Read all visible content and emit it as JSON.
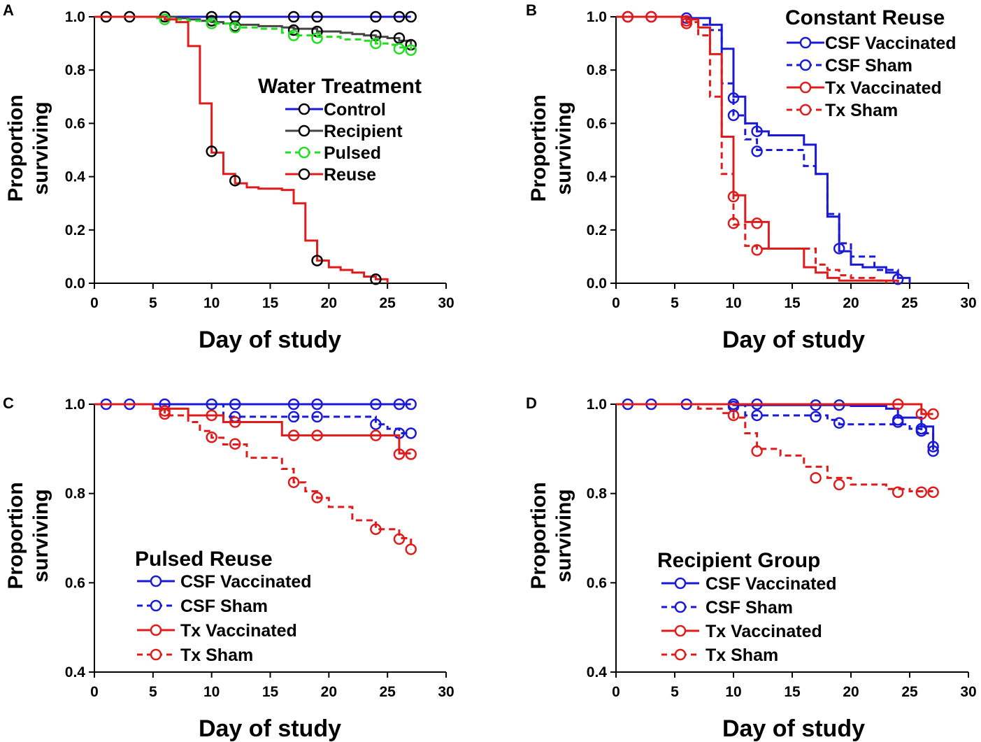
{
  "chart_data": [
    {
      "type": "line",
      "panel": "A",
      "xlabel": "Day of study",
      "ylabel": "Proportion surviving",
      "xlim": [
        0,
        30
      ],
      "ylim": [
        0,
        1.0
      ],
      "xticks": [
        "0",
        "5",
        "10",
        "15",
        "20",
        "25",
        "30"
      ],
      "yticks": [
        "0.0",
        "0.2",
        "0.4",
        "0.6",
        "0.8",
        "1.0"
      ],
      "legend_title": "Water Treatment",
      "legend_position": "center-right",
      "series": [
        {
          "name": "Control",
          "color": "#1a1ad6",
          "marker_color": "#000000",
          "dashed": false,
          "x": [
            0,
            27
          ],
          "y": [
            1.0,
            1.0
          ],
          "markers": [
            [
              1,
              1.0
            ],
            [
              3,
              1.0
            ],
            [
              6,
              1.0
            ],
            [
              10,
              1.0
            ],
            [
              12,
              1.0
            ],
            [
              17,
              1.0
            ],
            [
              19,
              1.0
            ],
            [
              24,
              1.0
            ],
            [
              26,
              1.0
            ],
            [
              27,
              1.0
            ]
          ]
        },
        {
          "name": "Recipient",
          "color": "#444444",
          "marker_color": "#000000",
          "dashed": false,
          "x": [
            0,
            7,
            8,
            9,
            10,
            11,
            12,
            14,
            16,
            17,
            19,
            21,
            22,
            23,
            24,
            25,
            26,
            27
          ],
          "y": [
            1.0,
            0.995,
            0.99,
            0.985,
            0.98,
            0.975,
            0.97,
            0.965,
            0.96,
            0.955,
            0.945,
            0.94,
            0.935,
            0.93,
            0.925,
            0.92,
            0.91,
            0.895
          ],
          "markers": [
            [
              10,
              0.985
            ],
            [
              12,
              0.965
            ],
            [
              17,
              0.95
            ],
            [
              19,
              0.945
            ],
            [
              24,
              0.93
            ],
            [
              26,
              0.92
            ],
            [
              27,
              0.895
            ]
          ]
        },
        {
          "name": "Pulsed",
          "color": "#22dd22",
          "marker_color": "#22dd22",
          "dashed": true,
          "x": [
            0,
            5,
            6,
            8,
            10,
            12,
            14,
            16,
            17,
            19,
            21,
            23,
            24,
            25,
            26,
            27
          ],
          "y": [
            1.0,
            0.995,
            0.99,
            0.985,
            0.975,
            0.96,
            0.955,
            0.94,
            0.93,
            0.925,
            0.915,
            0.91,
            0.9,
            0.895,
            0.885,
            0.875
          ],
          "markers": [
            [
              6,
              0.99
            ],
            [
              10,
              0.975
            ],
            [
              12,
              0.96
            ],
            [
              17,
              0.93
            ],
            [
              19,
              0.92
            ],
            [
              24,
              0.9
            ],
            [
              26,
              0.88
            ],
            [
              27,
              0.875
            ]
          ]
        },
        {
          "name": "Reuse",
          "color": "#e01b1b",
          "marker_color": "#000000",
          "dashed": false,
          "x": [
            0,
            6,
            7,
            8,
            9,
            10,
            11,
            12,
            13,
            14,
            16,
            17,
            18,
            19,
            20,
            21,
            22,
            23,
            24,
            25
          ],
          "y": [
            1.0,
            0.99,
            0.98,
            0.89,
            0.675,
            0.49,
            0.41,
            0.375,
            0.36,
            0.355,
            0.35,
            0.3,
            0.16,
            0.085,
            0.06,
            0.05,
            0.04,
            0.025,
            0.015,
            0.0
          ],
          "markers": [
            [
              10,
              0.495
            ],
            [
              12,
              0.385
            ],
            [
              19,
              0.085
            ],
            [
              24,
              0.015
            ]
          ]
        }
      ]
    },
    {
      "type": "line",
      "panel": "B",
      "xlabel": "Day of study",
      "ylabel": "Proportion surviving",
      "xlim": [
        0,
        30
      ],
      "ylim": [
        0,
        1.0
      ],
      "xticks": [
        "0",
        "5",
        "10",
        "15",
        "20",
        "25",
        "30"
      ],
      "yticks": [
        "0.0",
        "0.2",
        "0.4",
        "0.6",
        "0.8",
        "1.0"
      ],
      "legend_title": "Constant Reuse",
      "legend_position": "top-right",
      "series": [
        {
          "name": "CSF Vaccinated",
          "color": "#1a1ad6",
          "marker_color": "#1a1ad6",
          "dashed": false,
          "x": [
            0,
            6,
            8,
            9,
            10,
            11,
            12,
            13,
            16,
            17,
            18,
            19,
            20,
            21,
            23,
            24,
            25
          ],
          "y": [
            1.0,
            0.995,
            0.97,
            0.88,
            0.7,
            0.6,
            0.57,
            0.555,
            0.52,
            0.41,
            0.25,
            0.12,
            0.07,
            0.06,
            0.04,
            0.02,
            0.0
          ],
          "markers": [
            [
              1,
              1.0
            ],
            [
              3,
              1.0
            ],
            [
              6,
              0.995
            ],
            [
              10,
              0.695
            ],
            [
              12,
              0.57
            ],
            [
              19,
              0.13
            ],
            [
              24,
              0.015
            ]
          ]
        },
        {
          "name": "CSF Sham",
          "color": "#1a1ad6",
          "marker_color": "#1a1ad6",
          "dashed": true,
          "x": [
            0,
            6,
            7,
            8,
            9,
            10,
            11,
            12,
            16,
            17,
            18,
            19,
            20,
            22,
            24
          ],
          "y": [
            1.0,
            0.99,
            0.97,
            0.95,
            0.75,
            0.63,
            0.54,
            0.5,
            0.44,
            0.41,
            0.26,
            0.15,
            0.1,
            0.05,
            0.01
          ],
          "markers": [
            [
              10,
              0.63
            ],
            [
              12,
              0.495
            ]
          ]
        },
        {
          "name": "Tx Vaccinated",
          "color": "#e01b1b",
          "marker_color": "#e01b1b",
          "dashed": false,
          "x": [
            0,
            6,
            7,
            8,
            9,
            10,
            11,
            12,
            13,
            16,
            17,
            18,
            19,
            24
          ],
          "y": [
            1.0,
            0.99,
            0.96,
            0.86,
            0.55,
            0.33,
            0.23,
            0.23,
            0.13,
            0.06,
            0.04,
            0.02,
            0.01,
            0.0
          ],
          "markers": [
            [
              1,
              1.0
            ],
            [
              3,
              1.0
            ],
            [
              6,
              0.985
            ],
            [
              10,
              0.325
            ],
            [
              12,
              0.225
            ]
          ]
        },
        {
          "name": "Tx Sham",
          "color": "#e01b1b",
          "marker_color": "#e01b1b",
          "dashed": true,
          "x": [
            0,
            6,
            7,
            8,
            9,
            10,
            11,
            12,
            13,
            17,
            18,
            19,
            20,
            22,
            23
          ],
          "y": [
            1.0,
            0.98,
            0.93,
            0.7,
            0.41,
            0.22,
            0.14,
            0.13,
            0.13,
            0.07,
            0.05,
            0.03,
            0.02,
            0.01,
            0.0
          ],
          "markers": [
            [
              6,
              0.975
            ],
            [
              10,
              0.225
            ],
            [
              12,
              0.125
            ]
          ]
        }
      ]
    },
    {
      "type": "line",
      "panel": "C",
      "xlabel": "Day of study",
      "ylabel": "Proportion surviving",
      "xlim": [
        0,
        30
      ],
      "ylim": [
        0.4,
        1.0
      ],
      "xticks": [
        "0",
        "5",
        "10",
        "15",
        "20",
        "25",
        "30"
      ],
      "yticks": [
        "0.4",
        "0.6",
        "0.8",
        "1.0"
      ],
      "legend_title": "Pulsed Reuse",
      "legend_position": "bottom-left",
      "series": [
        {
          "name": "CSF Vaccinated",
          "color": "#1a1ad6",
          "marker_color": "#1a1ad6",
          "dashed": false,
          "x": [
            0,
            27
          ],
          "y": [
            1.0,
            1.0
          ],
          "markers": [
            [
              1,
              1.0
            ],
            [
              3,
              1.0
            ],
            [
              6,
              1.0
            ],
            [
              10,
              1.0
            ],
            [
              12,
              1.0
            ],
            [
              17,
              1.0
            ],
            [
              19,
              1.0
            ],
            [
              24,
              1.0
            ],
            [
              26,
              1.0
            ],
            [
              27,
              1.0
            ]
          ]
        },
        {
          "name": "CSF Sham",
          "color": "#1a1ad6",
          "marker_color": "#1a1ad6",
          "dashed": true,
          "x": [
            0,
            11,
            23,
            24,
            25,
            26,
            27
          ],
          "y": [
            1.0,
            0.972,
            0.972,
            0.955,
            0.945,
            0.935,
            0.935
          ],
          "markers": [
            [
              12,
              0.972
            ],
            [
              17,
              0.972
            ],
            [
              19,
              0.972
            ],
            [
              24,
              0.955
            ],
            [
              26,
              0.935
            ],
            [
              27,
              0.935
            ]
          ]
        },
        {
          "name": "Tx Vaccinated",
          "color": "#e01b1b",
          "marker_color": "#e01b1b",
          "dashed": false,
          "x": [
            0,
            5,
            8,
            11,
            16,
            26,
            27
          ],
          "y": [
            1.0,
            0.99,
            0.975,
            0.96,
            0.93,
            0.89,
            0.89
          ],
          "markers": [
            [
              6,
              0.985
            ],
            [
              10,
              0.975
            ],
            [
              12,
              0.96
            ],
            [
              17,
              0.93
            ],
            [
              19,
              0.93
            ],
            [
              24,
              0.93
            ],
            [
              26,
              0.888
            ],
            [
              27,
              0.888
            ]
          ]
        },
        {
          "name": "Tx Sham",
          "color": "#e01b1b",
          "marker_color": "#e01b1b",
          "dashed": true,
          "x": [
            0,
            5,
            6,
            8,
            9,
            10,
            11,
            13,
            16,
            17,
            18,
            19,
            20,
            22,
            24,
            26,
            27
          ],
          "y": [
            1.0,
            0.99,
            0.975,
            0.96,
            0.94,
            0.925,
            0.91,
            0.88,
            0.855,
            0.825,
            0.805,
            0.79,
            0.77,
            0.74,
            0.72,
            0.7,
            0.675
          ],
          "markers": [
            [
              6,
              0.978
            ],
            [
              10,
              0.926
            ],
            [
              12,
              0.911
            ],
            [
              17,
              0.825
            ],
            [
              19,
              0.791
            ],
            [
              24,
              0.72
            ],
            [
              26,
              0.698
            ],
            [
              27,
              0.675
            ]
          ]
        }
      ]
    },
    {
      "type": "line",
      "panel": "D",
      "xlabel": "Day of study",
      "ylabel": "Proportion surviving",
      "xlim": [
        0,
        30
      ],
      "ylim": [
        0.4,
        1.0
      ],
      "xticks": [
        "0",
        "5",
        "10",
        "15",
        "20",
        "25",
        "30"
      ],
      "yticks": [
        "0.4",
        "0.6",
        "0.8",
        "1.0"
      ],
      "legend_title": "Recipient Group",
      "legend_position": "bottom-left",
      "series": [
        {
          "name": "CSF Vaccinated",
          "color": "#1a1ad6",
          "marker_color": "#1a1ad6",
          "dashed": false,
          "x": [
            0,
            10,
            20,
            23,
            24,
            26,
            27
          ],
          "y": [
            1.0,
            0.998,
            0.996,
            0.99,
            0.97,
            0.95,
            0.905
          ],
          "markers": [
            [
              1,
              1.0
            ],
            [
              3,
              1.0
            ],
            [
              6,
              1.0
            ],
            [
              10,
              1.0
            ],
            [
              12,
              1.0
            ],
            [
              17,
              0.998
            ],
            [
              19,
              0.998
            ],
            [
              24,
              0.965
            ],
            [
              26,
              0.945
            ],
            [
              27,
              0.905
            ]
          ]
        },
        {
          "name": "CSF Sham",
          "color": "#1a1ad6",
          "marker_color": "#1a1ad6",
          "dashed": true,
          "x": [
            0,
            11,
            18,
            19,
            23,
            25,
            26,
            27
          ],
          "y": [
            1.0,
            0.975,
            0.965,
            0.955,
            0.955,
            0.945,
            0.935,
            0.895
          ],
          "markers": [
            [
              10,
              0.995
            ],
            [
              12,
              0.975
            ],
            [
              17,
              0.972
            ],
            [
              19,
              0.958
            ],
            [
              24,
              0.96
            ],
            [
              26,
              0.94
            ],
            [
              27,
              0.895
            ]
          ]
        },
        {
          "name": "Tx Vaccinated",
          "color": "#e01b1b",
          "marker_color": "#e01b1b",
          "dashed": false,
          "x": [
            0,
            25,
            26,
            27
          ],
          "y": [
            1.0,
            1.0,
            0.978,
            0.978
          ],
          "markers": [
            [
              24,
              1.0
            ],
            [
              26,
              0.978
            ],
            [
              27,
              0.978
            ]
          ]
        },
        {
          "name": "Tx Sham",
          "color": "#e01b1b",
          "marker_color": "#e01b1b",
          "dashed": true,
          "x": [
            0,
            7,
            9,
            10,
            11,
            12,
            14,
            16,
            18,
            20,
            23,
            25,
            27
          ],
          "y": [
            1.0,
            0.99,
            0.98,
            0.97,
            0.935,
            0.9,
            0.885,
            0.86,
            0.835,
            0.82,
            0.81,
            0.805,
            0.805
          ],
          "markers": [
            [
              10,
              0.975
            ],
            [
              12,
              0.895
            ],
            [
              17,
              0.835
            ],
            [
              19,
              0.82
            ],
            [
              24,
              0.803
            ],
            [
              26,
              0.803
            ],
            [
              27,
              0.803
            ]
          ]
        }
      ]
    }
  ]
}
